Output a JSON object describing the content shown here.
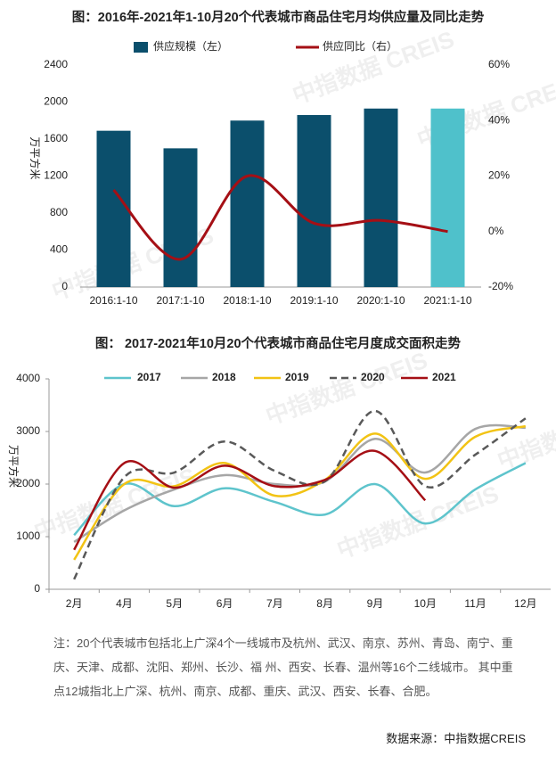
{
  "chart_data": [
    {
      "type": "bar",
      "title": "图：2016年-2021年1-10月20个代表城市商品住宅月均供应量及同比走势",
      "y_label": "万平方米",
      "categories": [
        "2016:1-10",
        "2017:1-10",
        "2018:1-10",
        "2019:1-10",
        "2020:1-10",
        "2021:1-10"
      ],
      "series": [
        {
          "name": "供应规模（左）",
          "type": "bar",
          "colors": [
            "#0b4f6c",
            "#0b4f6c",
            "#0b4f6c",
            "#0b4f6c",
            "#0b4f6c",
            "#4fc1cb"
          ],
          "values": [
            1690,
            1500,
            1800,
            1860,
            1930,
            1930
          ]
        },
        {
          "name": "供应同比（右）",
          "type": "line",
          "axis": "y2",
          "color": "#a50f15",
          "values": [
            15,
            -10,
            20,
            3,
            4,
            0
          ]
        }
      ],
      "ylim": [
        0,
        2400
      ],
      "yticks": [
        0,
        400,
        800,
        1200,
        1600,
        2000,
        2400
      ],
      "y2lim": [
        -20,
        60
      ],
      "y2ticks": [
        {
          "value": -20,
          "label": "-20%"
        },
        {
          "value": 0,
          "label": "0%"
        },
        {
          "value": 20,
          "label": "20%"
        },
        {
          "value": 40,
          "label": "40%"
        },
        {
          "value": 60,
          "label": "60%"
        }
      ],
      "grid": false
    },
    {
      "type": "line",
      "smooth": true,
      "title": "图： 2017-2021年10月20个代表城市商品住宅月度成交面积走势",
      "y_label": "万平方米",
      "categories": [
        "2月",
        "4月",
        "5月",
        "6月",
        "7月",
        "8月",
        "9月",
        "10月",
        "11月",
        "12月"
      ],
      "series": [
        {
          "name": "2017",
          "color": "#5ec4cc",
          "dashed": false,
          "values": [
            1030,
            2000,
            1580,
            1920,
            1660,
            1420,
            2000,
            1250,
            1900,
            2400
          ]
        },
        {
          "name": "2018",
          "color": "#a6a6a6",
          "dashed": false,
          "values": [
            900,
            1500,
            1900,
            2170,
            2000,
            2050,
            2860,
            2220,
            3050,
            3070
          ]
        },
        {
          "name": "2019",
          "color": "#f2c314",
          "dashed": false,
          "values": [
            560,
            2000,
            1960,
            2400,
            1780,
            2080,
            2960,
            2100,
            2900,
            3100
          ]
        },
        {
          "name": "2020",
          "color": "#595959",
          "dashed": true,
          "values": [
            190,
            2130,
            2220,
            2810,
            2250,
            2050,
            3390,
            1960,
            2560,
            3250
          ]
        },
        {
          "name": "2021",
          "color": "#a50f15",
          "dashed": false,
          "values": [
            750,
            2400,
            1930,
            2350,
            1960,
            2080,
            2630,
            1690,
            null,
            null
          ]
        }
      ],
      "ylim": [
        0,
        4000
      ],
      "yticks": [
        0,
        1000,
        2000,
        3000,
        4000
      ],
      "grid": false
    }
  ],
  "watermark": "中指数据 CREIS",
  "note": "注：20个代表城市包括北上广深4个一线城市及杭州、武汉、南京、苏州、青岛、南宁、重庆、天津、成都、沈阳、郑州、长沙、福 州、西安、长春、温州等16个二线城市。 其中重点12城指北上广深、杭州、南京、成都、重庆、武汉、西安、长春、合肥。",
  "source": "数据来源：中指数据CREIS"
}
